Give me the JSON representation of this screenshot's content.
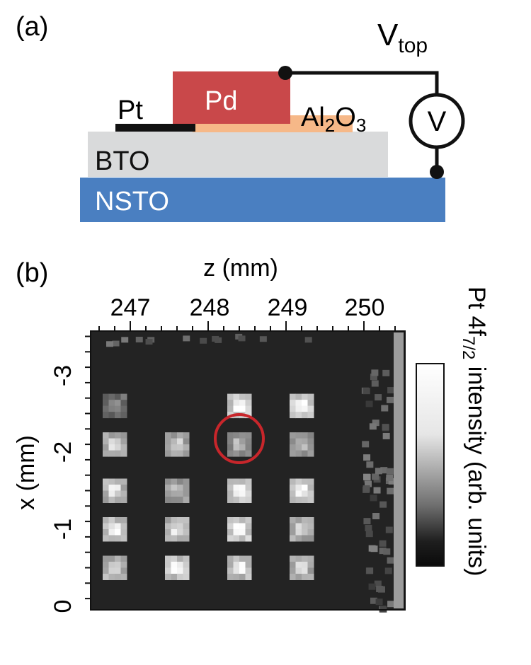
{
  "panel_a": {
    "label": "(a)",
    "v_top_label": "V",
    "v_top_sub": "top",
    "meter_symbol": "V",
    "layers": {
      "pd": "Pd",
      "pt": "Pt",
      "al2o3_a": "Al",
      "al2o3_sub1": "2",
      "al2o3_o": "O",
      "al2o3_sub2": "3",
      "bto": "BTO",
      "nsto": "NSTO"
    },
    "colors": {
      "pd": "#c9484a",
      "al2o3": "#f6b888",
      "bto": "#d9dadb",
      "nsto": "#4a7fc1",
      "pt": "#111111"
    }
  },
  "panel_b": {
    "label": "(b)",
    "z_axis_label": "z (mm)",
    "z_ticks": [
      "247",
      "248",
      "249",
      "250"
    ],
    "x_axis_label": "x (mm)",
    "x_ticks": [
      "-3",
      "-2",
      "-1",
      "0"
    ],
    "colorbar_label_pre": "Pt 4f",
    "colorbar_label_sub": "7/2",
    "colorbar_label_post": " intensity (arb. units)",
    "highlight_color": "#c8262b"
  },
  "chart_data": {
    "type": "heatmap",
    "title": "",
    "xlabel": "z (mm)",
    "ylabel": "x (mm)",
    "colorbar": "Pt 4f7/2 intensity (arb. units)",
    "z_tick_values": [
      247,
      248,
      249,
      250
    ],
    "x_tick_values": [
      -3,
      -2,
      -1,
      0
    ],
    "pads": {
      "z_centers_mm": [
        246.8,
        247.6,
        248.4,
        249.2
      ],
      "x_centers_mm": [
        -2.6,
        -2.1,
        -1.5,
        -1.0,
        -0.5
      ],
      "relative_intensity": [
        [
          0.45,
          null,
          1.0,
          1.0
        ],
        [
          0.8,
          0.75,
          0.65,
          0.7
        ],
        [
          0.85,
          0.7,
          1.0,
          0.95
        ],
        [
          0.95,
          0.85,
          1.0,
          0.8
        ],
        [
          0.85,
          0.95,
          0.9,
          0.8
        ]
      ]
    },
    "highlighted_pad": {
      "z_mm": 248.4,
      "x_mm": -2.1
    }
  }
}
